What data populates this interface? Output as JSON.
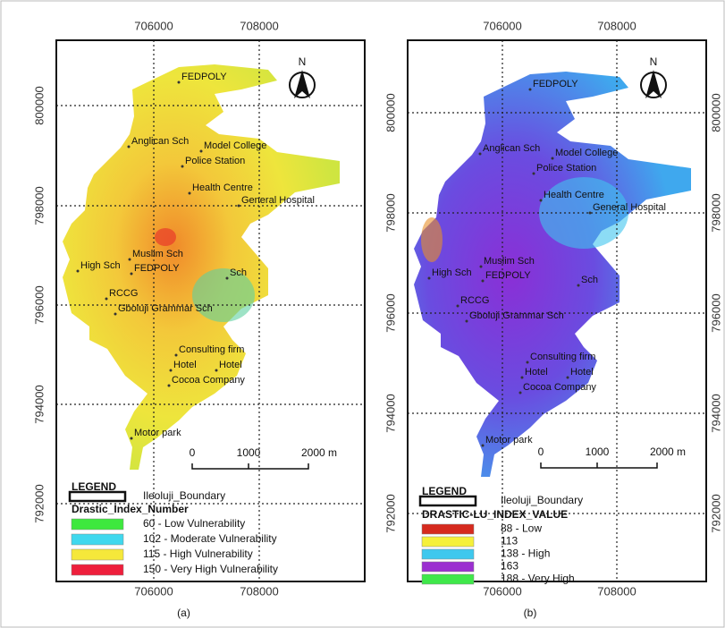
{
  "panels": [
    {
      "caption": "(a)",
      "x_ticks": [
        "706000",
        "708000"
      ],
      "y_ticks": [
        "800000",
        "798000",
        "796000",
        "794000",
        "792000"
      ],
      "north": "N",
      "places": [
        "FEDPOLY",
        "Anglican Sch",
        "Model College",
        "Police Station",
        "Health Centre",
        "General Hospital",
        "Muslim Sch",
        "High Sch",
        "FEDPOLY",
        "Sch",
        "RCCG",
        "Gboluji Grammar Sch",
        "Consulting firm",
        "Hotel",
        "Hotel",
        "Cocoa Company",
        "Motor park"
      ],
      "scale": [
        "0",
        "1000",
        "2000 m"
      ],
      "legend": {
        "title": "LEGEND",
        "boundary": "Ileoluji_Boundary",
        "heading": "Drastic_Index_Number",
        "items": [
          {
            "label": "60  - Low Vulnerability",
            "color": "#3ee83e"
          },
          {
            "label": "102 - Moderate Vulnerability",
            "color": "#40d8ee"
          },
          {
            "label": "115 - High Vulnerability",
            "color": "#f5e83a"
          },
          {
            "label": "150 - Very High Vulnerability",
            "color": "#ee1f3c"
          }
        ]
      }
    },
    {
      "caption": "(b)",
      "x_ticks": [
        "706000",
        "708000"
      ],
      "y_ticks": [
        "800000",
        "798000",
        "796000",
        "794000",
        "792000"
      ],
      "north": "N",
      "places": [
        "FEDPOLY",
        "Anglican Sch",
        "Model College",
        "Police Station",
        "Health Centre",
        "General Hospital",
        "Muslim Sch",
        "High Sch",
        "FEDPOLY",
        "Sch",
        "RCCG",
        "Gboluji Grammar Sch",
        "Consulting firm",
        "Hotel",
        "Hotel",
        "Cocoa Company",
        "Motor park"
      ],
      "scale": [
        "0",
        "1000",
        "2000 m"
      ],
      "legend": {
        "title": "LEGEND",
        "boundary": "Ileoluji_Boundary",
        "heading": "DRASTIC-LU_INDEX_VALUE",
        "items": [
          {
            "label": "88 - Low",
            "color": "#d62a1e"
          },
          {
            "label": "113",
            "color": "#f5f03a"
          },
          {
            "label": "138 - High",
            "color": "#3ec8ee"
          },
          {
            "label": "163",
            "color": "#9b2fd0"
          },
          {
            "label": "188 - Very High",
            "color": "#3fe84a"
          }
        ]
      }
    }
  ]
}
